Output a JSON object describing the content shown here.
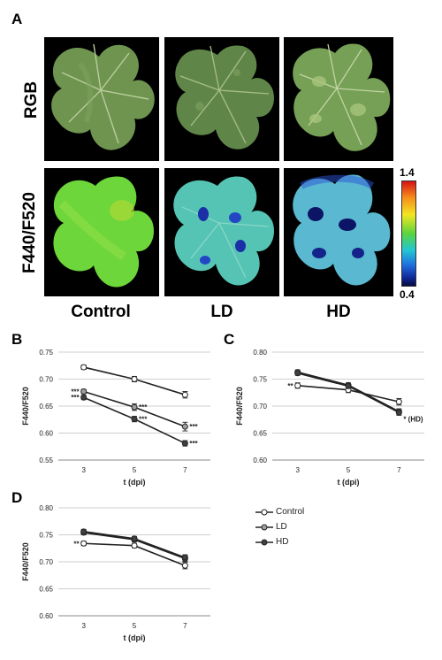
{
  "panel_a": {
    "letter": "A",
    "row_labels": [
      "RGB",
      "F440/F520"
    ],
    "col_labels": [
      "Control",
      "LD",
      "HD"
    ],
    "colorbar": {
      "max_label": "1.4",
      "min_label": "0.4"
    }
  },
  "legend": {
    "items": [
      "Control",
      "LD",
      "HD"
    ]
  },
  "colors": {
    "Control": "#ffffff",
    "LD": "#a0a0a0",
    "HD": "#404040",
    "line": "#222222",
    "grid": "#cfcfcf"
  },
  "chart_data": [
    {
      "panel": "B",
      "type": "line",
      "xlabel": "t (dpi)",
      "ylabel": "F440/F520",
      "x": [
        3,
        5,
        7
      ],
      "ylim": [
        0.55,
        0.75
      ],
      "yticks": [
        "0.55",
        "0.60",
        "0.65",
        "0.70",
        "0.75"
      ],
      "series": [
        {
          "name": "Control",
          "values": [
            0.722,
            0.7,
            0.671
          ],
          "errors": [
            0.004,
            0.005,
            0.006
          ]
        },
        {
          "name": "LD",
          "values": [
            0.677,
            0.648,
            0.612
          ],
          "errors": [
            0.004,
            0.006,
            0.008
          ]
        },
        {
          "name": "HD",
          "values": [
            0.666,
            0.626,
            0.581
          ],
          "errors": [
            0.004,
            0.005,
            0.005
          ]
        }
      ],
      "annotations": [
        {
          "text": "***",
          "x": 3,
          "y": 0.677,
          "side": "left"
        },
        {
          "text": "***",
          "x": 3,
          "y": 0.666,
          "side": "left"
        },
        {
          "text": "***",
          "x": 5,
          "y": 0.648,
          "side": "right"
        },
        {
          "text": "***",
          "x": 5,
          "y": 0.626,
          "side": "right"
        },
        {
          "text": "***",
          "x": 7,
          "y": 0.612,
          "side": "right"
        },
        {
          "text": "***",
          "x": 7,
          "y": 0.581,
          "side": "right"
        }
      ]
    },
    {
      "panel": "C",
      "type": "line",
      "xlabel": "t (dpi)",
      "ylabel": "F440/F520",
      "x": [
        3,
        5,
        7
      ],
      "ylim": [
        0.6,
        0.8
      ],
      "yticks": [
        "0.60",
        "0.65",
        "0.70",
        "0.75",
        "0.80"
      ],
      "series": [
        {
          "name": "Control",
          "values": [
            0.738,
            0.73,
            0.708
          ],
          "errors": [
            0.005,
            0.005,
            0.006
          ]
        },
        {
          "name": "LD",
          "values": [
            0.763,
            0.739,
            0.69
          ],
          "errors": [
            0.004,
            0.004,
            0.005
          ]
        },
        {
          "name": "HD",
          "values": [
            0.761,
            0.737,
            0.688
          ],
          "errors": [
            0.004,
            0.004,
            0.005
          ]
        }
      ],
      "annotations": [
        {
          "text": "**",
          "x": 3,
          "y": 0.738,
          "side": "left"
        },
        {
          "text": "* (HD)",
          "x": 7,
          "y": 0.676,
          "side": "right"
        }
      ]
    },
    {
      "panel": "D",
      "type": "line",
      "xlabel": "t (dpi)",
      "ylabel": "F440/F520",
      "x": [
        3,
        5,
        7
      ],
      "ylim": [
        0.6,
        0.8
      ],
      "yticks": [
        "0.60",
        "0.65",
        "0.70",
        "0.75",
        "0.80"
      ],
      "series": [
        {
          "name": "Control",
          "values": [
            0.734,
            0.73,
            0.693
          ],
          "errors": [
            0.004,
            0.004,
            0.006
          ]
        },
        {
          "name": "LD",
          "values": [
            0.754,
            0.741,
            0.706
          ],
          "errors": [
            0.004,
            0.004,
            0.005
          ]
        },
        {
          "name": "HD",
          "values": [
            0.756,
            0.743,
            0.708
          ],
          "errors": [
            0.004,
            0.004,
            0.005
          ]
        }
      ],
      "annotations": [
        {
          "text": "**",
          "x": 3,
          "y": 0.734,
          "side": "left"
        }
      ]
    }
  ]
}
